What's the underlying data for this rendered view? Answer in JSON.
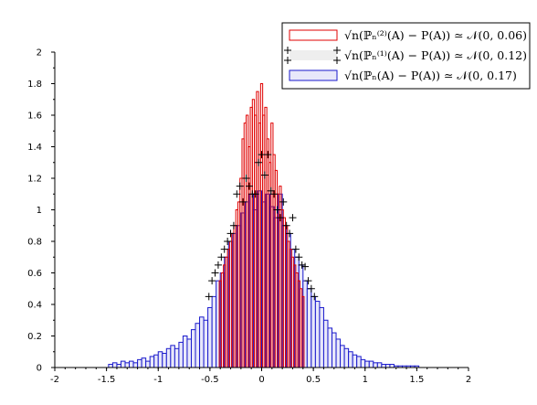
{
  "chart_data": {
    "type": "bar",
    "subtype": "overlaid-histogram",
    "title": "",
    "xlabel": "",
    "ylabel": "",
    "xlim": [
      -2,
      2
    ],
    "ylim": [
      0,
      2
    ],
    "x_ticks": [
      "-2",
      "-1.5",
      "-1",
      "-0.5",
      "0",
      "0.5",
      "1",
      "1.5",
      "2"
    ],
    "y_ticks": [
      "0",
      "0.2",
      "0.4",
      "0.6",
      "0.8",
      "1",
      "1.2",
      "1.4",
      "1.6",
      "1.8",
      "2"
    ],
    "grid": false,
    "legend_position": "top-right",
    "series": [
      {
        "name": "√n(ℙₙ⁽²⁾(A) − P(A)) ≃ 𝒩(0, 0.06)",
        "style": "red-outline-bars",
        "color": "#e00000",
        "bin_width": 0.02,
        "x": [
          -0.4,
          -0.38,
          -0.36,
          -0.34,
          -0.32,
          -0.3,
          -0.28,
          -0.26,
          -0.24,
          -0.22,
          -0.2,
          -0.18,
          -0.16,
          -0.14,
          -0.12,
          -0.1,
          -0.08,
          -0.06,
          -0.04,
          -0.02,
          0,
          0.02,
          0.04,
          0.06,
          0.08,
          0.1,
          0.12,
          0.14,
          0.16,
          0.18,
          0.2,
          0.22,
          0.24,
          0.26,
          0.28,
          0.3,
          0.32,
          0.34,
          0.36,
          0.38,
          0.4
        ],
        "values": [
          0.55,
          0.6,
          0.65,
          0.7,
          0.75,
          0.8,
          0.85,
          0.9,
          1.0,
          1.05,
          1.2,
          1.45,
          1.55,
          1.6,
          1.4,
          1.65,
          1.7,
          1.6,
          1.75,
          1.55,
          1.8,
          1.6,
          1.65,
          1.45,
          1.3,
          1.55,
          1.35,
          1.25,
          1.1,
          1.15,
          1.0,
          0.95,
          0.9,
          0.8,
          0.75,
          0.7,
          0.65,
          0.6,
          0.55,
          0.5,
          0.45
        ]
      },
      {
        "name": "√n(ℙₙ⁽¹⁾(A) − P(A)) ≃ 𝒩(0, 0.12)",
        "style": "black-plus-markers",
        "color": "#000000",
        "x": [
          -0.3,
          -0.27,
          -0.24,
          -0.21,
          -0.18,
          -0.15,
          -0.12,
          -0.09,
          -0.06,
          -0.03,
          0,
          0.03,
          0.06,
          0.09,
          0.12,
          0.15,
          0.18,
          0.21,
          0.24,
          0.27,
          0.3,
          0.33,
          0.36,
          0.39,
          0.42,
          0.45,
          0.48,
          0.51,
          -0.33,
          -0.36,
          -0.39,
          -0.42,
          -0.45,
          -0.48,
          -0.51
        ],
        "values": [
          0.85,
          0.9,
          1.1,
          1.15,
          1.05,
          1.2,
          1.15,
          1.1,
          1.1,
          1.3,
          1.35,
          1.22,
          1.35,
          1.12,
          1.1,
          1.0,
          0.95,
          1.05,
          0.9,
          0.85,
          0.95,
          0.75,
          0.7,
          0.65,
          0.64,
          0.55,
          0.5,
          0.45,
          0.8,
          0.75,
          0.7,
          0.65,
          0.6,
          0.55,
          0.45
        ]
      },
      {
        "name": "√n(ℙₙ(A) − P(A)) ≃ 𝒩(0, 0.17)",
        "style": "blue-filled-bars",
        "color": "#1a1acc",
        "fill": "#e8e8fa",
        "bin_width": 0.04,
        "x": [
          -1.46,
          -1.42,
          -1.38,
          -1.34,
          -1.3,
          -1.26,
          -1.22,
          -1.18,
          -1.14,
          -1.1,
          -1.06,
          -1.02,
          -0.98,
          -0.94,
          -0.9,
          -0.86,
          -0.82,
          -0.78,
          -0.74,
          -0.7,
          -0.66,
          -0.62,
          -0.58,
          -0.54,
          -0.5,
          -0.46,
          -0.42,
          -0.38,
          -0.34,
          -0.3,
          -0.26,
          -0.22,
          -0.18,
          -0.14,
          -0.1,
          -0.06,
          -0.02,
          0.02,
          0.06,
          0.1,
          0.14,
          0.18,
          0.22,
          0.26,
          0.3,
          0.34,
          0.38,
          0.42,
          0.46,
          0.5,
          0.54,
          0.58,
          0.62,
          0.66,
          0.7,
          0.74,
          0.78,
          0.82,
          0.86,
          0.9,
          0.94,
          0.98,
          1.02,
          1.06,
          1.1,
          1.14,
          1.18,
          1.22,
          1.26,
          1.3,
          1.34,
          1.38,
          1.42,
          1.46,
          1.5
        ],
        "values": [
          0.02,
          0.03,
          0.02,
          0.04,
          0.03,
          0.04,
          0.03,
          0.05,
          0.06,
          0.04,
          0.07,
          0.08,
          0.1,
          0.09,
          0.12,
          0.14,
          0.12,
          0.16,
          0.2,
          0.18,
          0.24,
          0.28,
          0.32,
          0.3,
          0.38,
          0.45,
          0.55,
          0.6,
          0.7,
          0.8,
          0.85,
          0.9,
          0.98,
          1.05,
          1.1,
          1.0,
          1.12,
          1.05,
          1.1,
          1.02,
          0.95,
          1.1,
          0.9,
          0.85,
          0.75,
          0.7,
          0.65,
          0.55,
          0.5,
          0.45,
          0.42,
          0.38,
          0.3,
          0.25,
          0.22,
          0.18,
          0.14,
          0.12,
          0.1,
          0.08,
          0.07,
          0.05,
          0.04,
          0.04,
          0.03,
          0.03,
          0.02,
          0.02,
          0.02,
          0.01,
          0.01,
          0.01,
          0.01,
          0.01,
          0.01
        ]
      }
    ]
  }
}
